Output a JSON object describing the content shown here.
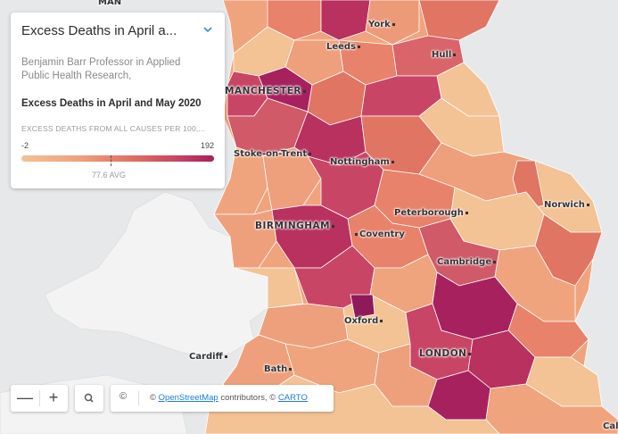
{
  "panel": {
    "title": "Excess Deaths in April a...",
    "subtitle": "Benjamin Barr Professor in Applied Public Health Research,",
    "heading": "Excess Deaths in April and May 2020",
    "caption": "EXCESS DEATHS FROM ALL CAUSES PER 100,...",
    "scale_min": "-2",
    "scale_max": "192",
    "average_label": "77.6 AVG",
    "average_value": 77.6
  },
  "colors": {
    "sea": "#e6e8ea",
    "land_neutral": "#f3f3f3",
    "scale": [
      "#f3c295",
      "#eea07c",
      "#e07563",
      "#c94565",
      "#a8215f"
    ]
  },
  "places": {
    "man": "MAN",
    "york": "York",
    "leeds": "Leeds",
    "hull": "Hull",
    "manchester": "MANCHESTER",
    "stoke": "Stoke-on-Trent",
    "nottingham": "Nottingham",
    "birmingham": "BIRMINGHAM",
    "coventry": "Coventry",
    "peterborough": "Peterborough",
    "norwich": "Norwich",
    "cambridge": "Cambridge",
    "oxford": "Oxford",
    "cardiff": "Cardiff",
    "bath": "Bath",
    "london": "LONDON",
    "calais": "Cal"
  },
  "controls": {
    "zoom_out": "—",
    "zoom_in": "+",
    "copyright": "©",
    "attribution_prefix": "©",
    "osm_link": "OpenStreetMap",
    "attribution_mid": "contributors, ©",
    "carto_link": "CARTO"
  }
}
